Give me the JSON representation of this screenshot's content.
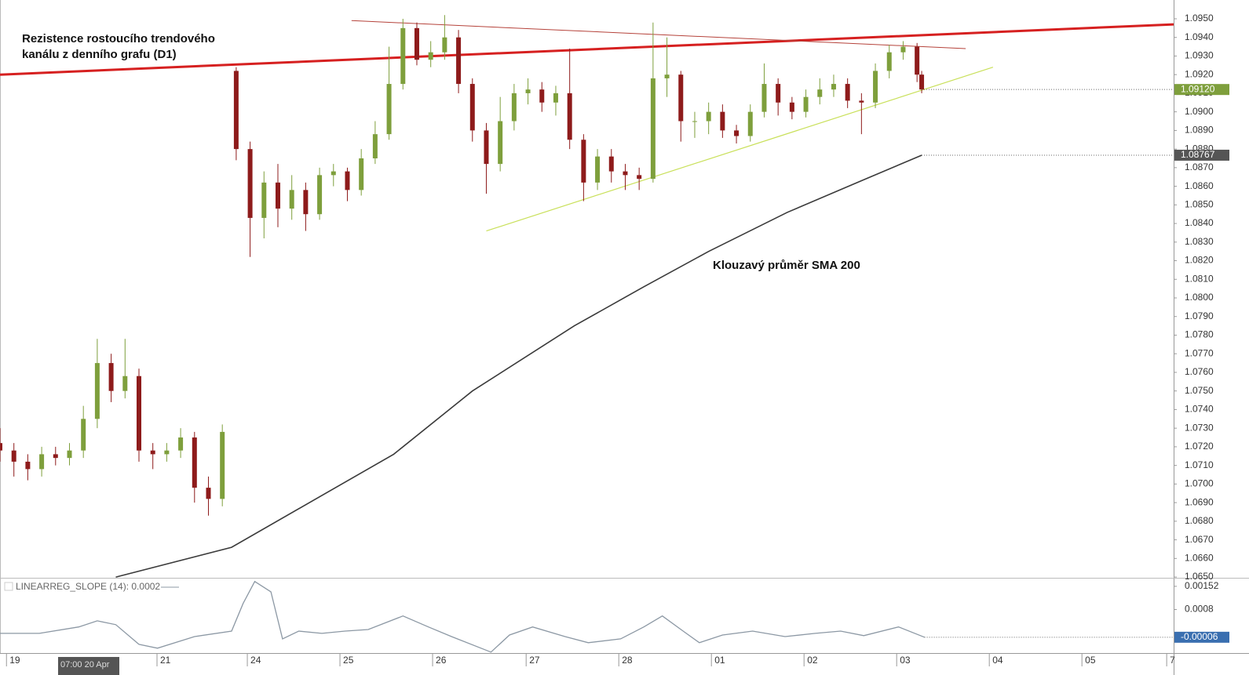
{
  "chart_data": [
    {
      "type": "candlestick",
      "up_color": "#7e9f3c",
      "down_color": "#8e1b1b",
      "x": [
        0,
        3,
        6,
        9,
        12,
        15,
        18,
        21,
        24,
        27,
        30,
        33,
        36,
        39,
        42,
        45,
        48,
        51,
        54,
        57,
        60,
        63,
        66,
        69,
        72,
        75,
        78,
        81,
        84,
        87,
        90,
        93,
        96,
        99,
        102,
        105,
        108,
        111,
        114,
        117,
        120,
        123,
        126,
        129,
        132,
        135,
        138,
        141,
        144,
        147,
        150,
        153,
        156,
        159,
        162,
        165,
        168,
        171,
        174,
        177,
        180,
        183,
        186,
        189,
        192,
        195,
        198,
        199
      ],
      "open": [
        1.0722,
        1.0718,
        1.0712,
        1.0708,
        1.0716,
        1.0714,
        1.0718,
        1.0735,
        1.0765,
        1.075,
        1.0758,
        1.0718,
        1.0716,
        1.0718,
        1.0725,
        1.0698,
        1.0692,
        1.0922,
        1.088,
        1.0843,
        1.0862,
        1.0848,
        1.0858,
        1.0845,
        1.0866,
        1.0868,
        1.0858,
        1.0875,
        1.0888,
        1.0915,
        1.0945,
        1.0928,
        1.0932,
        1.094,
        1.0915,
        1.089,
        1.0872,
        1.0895,
        1.091,
        1.0912,
        1.0905,
        1.091,
        1.0885,
        1.0862,
        1.0876,
        1.0868,
        1.0866,
        1.0864,
        1.0918,
        1.092,
        1.0895,
        1.0895,
        1.09,
        1.089,
        1.0887,
        1.09,
        1.0915,
        1.0905,
        1.09,
        1.0908,
        1.0912,
        1.0915,
        1.0906,
        1.0905,
        1.0922,
        1.0932,
        1.0935,
        1.092
      ],
      "high": [
        1.073,
        1.0722,
        1.0716,
        1.072,
        1.072,
        1.0722,
        1.0742,
        1.0778,
        1.077,
        1.0778,
        1.0762,
        1.0722,
        1.0722,
        1.073,
        1.0728,
        1.0704,
        1.0732,
        1.0924,
        1.0884,
        1.0868,
        1.0872,
        1.0866,
        1.0862,
        1.087,
        1.0872,
        1.087,
        1.088,
        1.0895,
        1.0935,
        1.095,
        1.0948,
        1.0938,
        1.0952,
        1.0944,
        1.0918,
        1.0894,
        1.0908,
        1.0915,
        1.0918,
        1.0916,
        1.0914,
        1.0934,
        1.0888,
        1.088,
        1.088,
        1.0872,
        1.087,
        1.0948,
        1.094,
        1.0922,
        1.09,
        1.0905,
        1.0904,
        1.0893,
        1.0904,
        1.0926,
        1.0918,
        1.0908,
        1.0912,
        1.0918,
        1.092,
        1.0918,
        1.091,
        1.0926,
        1.0936,
        1.0938,
        1.0937,
        1.0922
      ],
      "low": [
        1.0712,
        1.0704,
        1.0702,
        1.0704,
        1.071,
        1.071,
        1.0714,
        1.073,
        1.0744,
        1.0746,
        1.0712,
        1.0708,
        1.0712,
        1.0714,
        1.069,
        1.0683,
        1.0688,
        1.0874,
        1.0822,
        1.0832,
        1.0838,
        1.0842,
        1.0836,
        1.0842,
        1.086,
        1.0852,
        1.0855,
        1.0872,
        1.0885,
        1.0912,
        1.0925,
        1.0924,
        1.0928,
        1.091,
        1.0884,
        1.0856,
        1.0868,
        1.089,
        1.0904,
        1.09,
        1.0898,
        1.088,
        1.0852,
        1.0858,
        1.0862,
        1.0858,
        1.0858,
        1.0862,
        1.0908,
        1.0884,
        1.0886,
        1.0888,
        1.0886,
        1.0883,
        1.0884,
        1.0897,
        1.0898,
        1.0896,
        1.0897,
        1.0904,
        1.0908,
        1.0902,
        1.0888,
        1.0902,
        1.0918,
        1.0928,
        1.0916,
        1.091
      ],
      "close": [
        1.0718,
        1.0712,
        1.0708,
        1.0716,
        1.0714,
        1.0718,
        1.0735,
        1.0765,
        1.075,
        1.0758,
        1.0718,
        1.0716,
        1.0718,
        1.0725,
        1.0698,
        1.0692,
        1.0728,
        1.088,
        1.0843,
        1.0862,
        1.0848,
        1.0858,
        1.0845,
        1.0866,
        1.0868,
        1.0858,
        1.0875,
        1.0888,
        1.0915,
        1.0945,
        1.0928,
        1.0932,
        1.094,
        1.0915,
        1.089,
        1.0872,
        1.0895,
        1.091,
        1.0912,
        1.0905,
        1.091,
        1.0885,
        1.0862,
        1.0876,
        1.0868,
        1.0866,
        1.0864,
        1.0918,
        1.092,
        1.0895,
        1.0895,
        1.09,
        1.089,
        1.0887,
        1.09,
        1.0915,
        1.0905,
        1.09,
        1.0908,
        1.0912,
        1.0915,
        1.0906,
        1.0905,
        1.0922,
        1.0932,
        1.0935,
        1.092,
        1.0912
      ],
      "sma": {
        "color": "#3a3a3a",
        "x": [
          25,
          50,
          85,
          102,
          124,
          139,
          153,
          170,
          186,
          199
        ],
        "values": [
          1.065,
          1.0666,
          1.0716,
          1.075,
          1.0785,
          1.0806,
          1.0825,
          1.0846,
          1.0863,
          1.08767
        ]
      },
      "trendlines": [
        {
          "color": "#d62020",
          "width": 3,
          "x": [
            0,
            253.4
          ],
          "values": [
            1.092,
            1.0947
          ]
        },
        {
          "color": "#b5423a",
          "width": 1,
          "x": [
            75.9,
            208.5
          ],
          "values": [
            1.0949,
            1.0934
          ]
        },
        {
          "color": "#c9e05a",
          "width": 1.2,
          "x": [
            105,
            214.4
          ],
          "values": [
            1.0836,
            1.0924
          ]
        }
      ],
      "price_labels": [
        {
          "value": 1.0912,
          "label": "1.09120",
          "color": "#7e9f3c"
        },
        {
          "value": 1.08767,
          "label": "1.08767",
          "color": "#555555"
        }
      ],
      "annotations": [
        "Rezistence rostoucího trendového",
        "kanálu z denního grafu (D1)",
        "Klouzavý průměr SMA 200"
      ],
      "xlim": [
        0,
        253.4
      ],
      "ylim": [
        1.06496,
        1.09601
      ],
      "yticks": [
        {
          "value": 1.065,
          "label": "1.0650"
        },
        {
          "value": 1.066,
          "label": "1.0660"
        },
        {
          "value": 1.067,
          "label": "1.0670"
        },
        {
          "value": 1.068,
          "label": "1.0680"
        },
        {
          "value": 1.069,
          "label": "1.0690"
        },
        {
          "value": 1.07,
          "label": "1.0700"
        },
        {
          "value": 1.071,
          "label": "1.0710"
        },
        {
          "value": 1.072,
          "label": "1.0720"
        },
        {
          "value": 1.073,
          "label": "1.0730"
        },
        {
          "value": 1.074,
          "label": "1.0740"
        },
        {
          "value": 1.075,
          "label": "1.0750"
        },
        {
          "value": 1.076,
          "label": "1.0760"
        },
        {
          "value": 1.077,
          "label": "1.0770"
        },
        {
          "value": 1.078,
          "label": "1.0780"
        },
        {
          "value": 1.079,
          "label": "1.0790"
        },
        {
          "value": 1.08,
          "label": "1.0800"
        },
        {
          "value": 1.081,
          "label": "1.0810"
        },
        {
          "value": 1.082,
          "label": "1.0820"
        },
        {
          "value": 1.083,
          "label": "1.0830"
        },
        {
          "value": 1.084,
          "label": "1.0840"
        },
        {
          "value": 1.085,
          "label": "1.0850"
        },
        {
          "value": 1.086,
          "label": "1.0860"
        },
        {
          "value": 1.087,
          "label": "1.0870"
        },
        {
          "value": 1.088,
          "label": "1.0880"
        },
        {
          "value": 1.089,
          "label": "1.0890"
        },
        {
          "value": 1.09,
          "label": "1.0900"
        },
        {
          "value": 1.091,
          "label": "1.0910"
        },
        {
          "value": 1.092,
          "label": "1.0920"
        },
        {
          "value": 1.093,
          "label": "1.0930"
        },
        {
          "value": 1.094,
          "label": "1.0940"
        },
        {
          "value": 1.095,
          "label": "1.0950"
        }
      ]
    },
    {
      "type": "line",
      "series": [
        {
          "name": "LINEARREG_SLOPE (14): 0.0002",
          "color": "#8c98a4",
          "x": [
            0,
            8.5,
            17,
            21,
            25,
            30,
            34,
            42,
            50,
            52.5,
            55,
            58.5,
            61,
            64.5,
            69.5,
            74.5,
            79.5,
            87,
            92.5,
            97.5,
            106,
            110,
            115,
            122,
            127,
            134,
            139,
            143,
            147.5,
            151,
            156,
            162.5,
            169.5,
            176,
            181.5,
            186.5,
            194,
            199.6
          ],
          "values": [
            6e-05,
            6e-05,
            0.00026,
            0.00045,
            0.00033,
            -0.00028,
            -0.0004,
            -4e-05,
            0.00013,
            0.00099,
            0.00167,
            0.00135,
            -0.00011,
            0.00013,
            6e-05,
            0.00013,
            0.00018,
            0.0006,
            0.00026,
            -4e-05,
            -0.00052,
            1e-05,
            0.00026,
            -4e-05,
            -0.00023,
            -0.00011,
            0.00026,
            0.0006,
            0.00013,
            -0.00023,
            1e-05,
            0.00013,
            -4e-05,
            6e-05,
            0.00013,
            -1e-05,
            0.00026,
            -6e-05
          ]
        }
      ],
      "price_labels": [
        {
          "value": -6e-05,
          "label": "-0.00006",
          "color": "#3a6fb0"
        }
      ],
      "crosshair_label": "07:00 20 Apr",
      "xlim": [
        0,
        253.4
      ],
      "ylim": [
        -0.00055,
        0.00176
      ],
      "yticks": [
        0.00152,
        0.0008
      ],
      "xticks": [
        {
          "value": 1.4,
          "label": "19"
        },
        {
          "value": 33.9,
          "label": "21"
        },
        {
          "value": 53.4,
          "label": "24"
        },
        {
          "value": 73.4,
          "label": "25"
        },
        {
          "value": 93.4,
          "label": "26"
        },
        {
          "value": 113.6,
          "label": "27"
        },
        {
          "value": 133.6,
          "label": "28"
        },
        {
          "value": 153.6,
          "label": "01"
        },
        {
          "value": 173.6,
          "label": "02"
        },
        {
          "value": 193.6,
          "label": "03"
        },
        {
          "value": 213.6,
          "label": "04"
        },
        {
          "value": 233.6,
          "label": "05"
        },
        {
          "value": 251.9,
          "label": "7"
        }
      ]
    }
  ]
}
